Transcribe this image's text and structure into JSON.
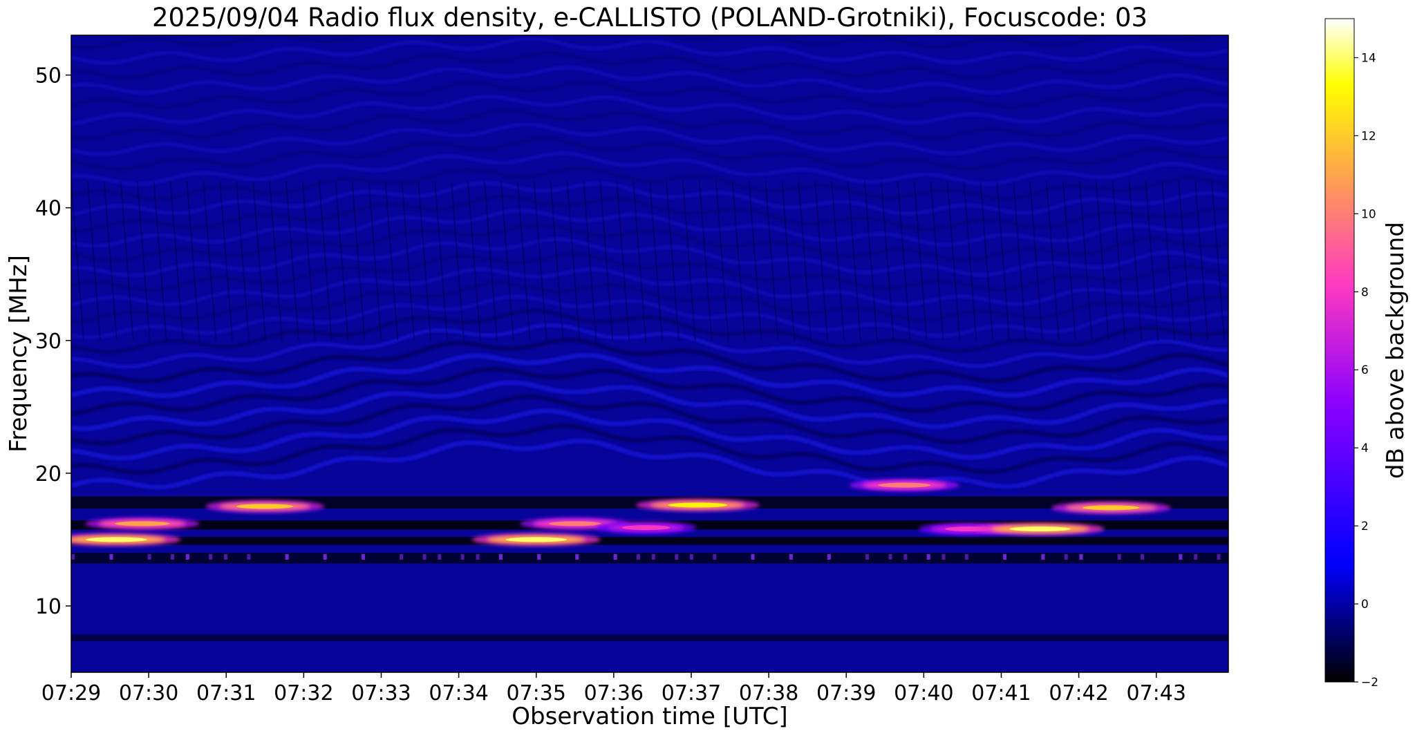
{
  "chart_data": {
    "type": "heatmap",
    "title": "2025/09/04  Radio flux density, e-CALLISTO (POLAND-Grotniki), Focuscode: 03",
    "xlabel": "Observation time [UTC]",
    "ylabel": "Frequency [MHz]",
    "colorbar_label": "dB above background",
    "x_unit": "minutes",
    "xlim": [
      "07:29",
      "07:44"
    ],
    "ylim": [
      5,
      53
    ],
    "x_ticks": [
      "07:29",
      "07:30",
      "07:31",
      "07:32",
      "07:33",
      "07:34",
      "07:35",
      "07:36",
      "07:37",
      "07:38",
      "07:39",
      "07:40",
      "07:41",
      "07:42",
      "07:43"
    ],
    "y_ticks": [
      10,
      20,
      30,
      40,
      50
    ],
    "colorbar_range": [
      -2,
      15
    ],
    "colorbar_ticks": [
      -2,
      0,
      2,
      4,
      6,
      8,
      10,
      12,
      14
    ],
    "colormap": "gnuplot2",
    "colormap_colors": [
      "#000000",
      "#0000ff",
      "#8a00ff",
      "#ff3ac0",
      "#ffa050",
      "#ffff00",
      "#ffffff"
    ],
    "grid": false,
    "legend": "none",
    "bursts": [
      {
        "time": "07:29:35",
        "freq_mhz": 15.0,
        "peak_db": 14
      },
      {
        "time": "07:29:55",
        "freq_mhz": 16.2,
        "peak_db": 11
      },
      {
        "time": "07:31:30",
        "freq_mhz": 17.5,
        "peak_db": 12
      },
      {
        "time": "07:35:00",
        "freq_mhz": 15.0,
        "peak_db": 14
      },
      {
        "time": "07:35:30",
        "freq_mhz": 16.2,
        "peak_db": 10
      },
      {
        "time": "07:36:25",
        "freq_mhz": 15.9,
        "peak_db": 8
      },
      {
        "time": "07:37:05",
        "freq_mhz": 17.6,
        "peak_db": 13
      },
      {
        "time": "07:39:45",
        "freq_mhz": 19.1,
        "peak_db": 10
      },
      {
        "time": "07:40:35",
        "freq_mhz": 15.8,
        "peak_db": 8
      },
      {
        "time": "07:41:30",
        "freq_mhz": 15.8,
        "peak_db": 14
      },
      {
        "time": "07:42:25",
        "freq_mhz": 17.4,
        "peak_db": 12
      }
    ]
  }
}
